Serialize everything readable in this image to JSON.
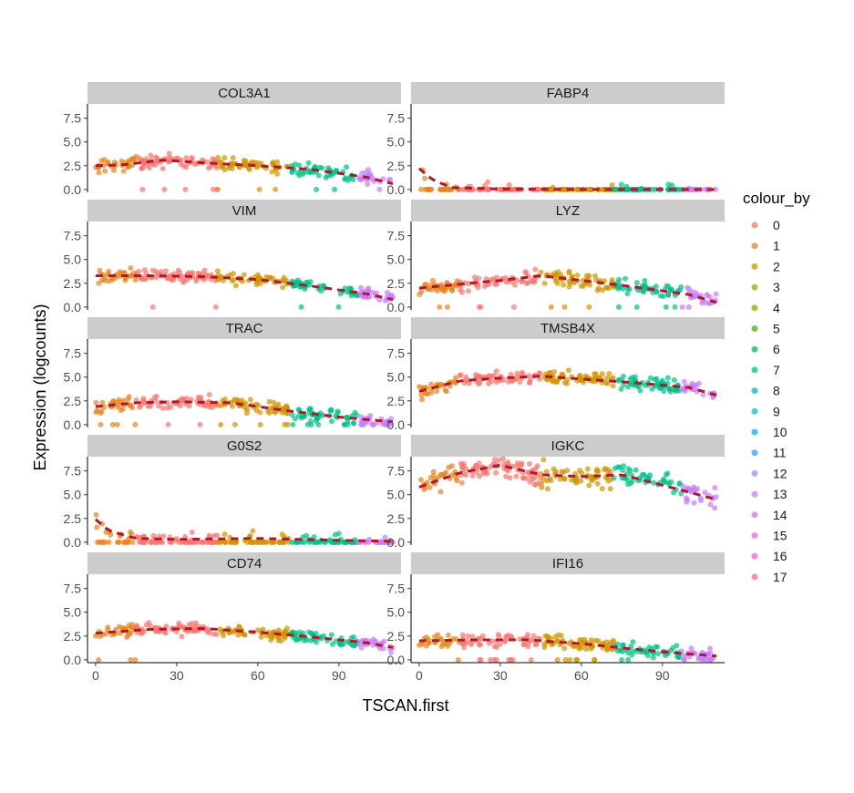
{
  "chart_data": {
    "type": "scatter",
    "facet_layout": "5 rows x 2 columns",
    "xlabel": "TSCAN.first",
    "ylabel": "Expression (logcounts)",
    "x_ticks": [
      0,
      30,
      60,
      90
    ],
    "y_ticks": [
      0.0,
      2.5,
      5.0,
      7.5
    ],
    "y_tick_labels": [
      "0.0",
      "2.5",
      "5.0",
      "7.5"
    ],
    "xlim": [
      -3,
      113
    ],
    "ylim": [
      -0.3,
      9.0
    ],
    "grid": false,
    "trend_line": {
      "style": "dashed",
      "color": "#b2182b"
    },
    "legend": {
      "title": "colour_by",
      "placement": "right",
      "entries": [
        "0",
        "1",
        "2",
        "3",
        "4",
        "5",
        "6",
        "7",
        "8",
        "9",
        "10",
        "11",
        "12",
        "13",
        "14",
        "15",
        "16",
        "17"
      ],
      "colors": [
        "#F8766D",
        "#E7851E",
        "#D09400",
        "#B2A100",
        "#89AC00",
        "#45B500",
        "#00BC51",
        "#00C087",
        "#00C0B2",
        "#00BCD6",
        "#00B3F2",
        "#29A3FF",
        "#9C8DFF",
        "#C77CFF",
        "#E46DF6",
        "#F663E1",
        "#FF62BF",
        "#FF6A98"
      ]
    },
    "cluster_segments": [
      {
        "cluster": "1",
        "x": [
          0,
          15
        ]
      },
      {
        "cluster": "0",
        "x": [
          15,
          45
        ]
      },
      {
        "cluster": "2",
        "x": [
          45,
          72
        ]
      },
      {
        "cluster": "7",
        "x": [
          72,
          97
        ]
      },
      {
        "cluster": "13",
        "x": [
          97,
          112
        ]
      }
    ],
    "panels": [
      {
        "gene": "COL3A1",
        "trend": {
          "x": [
            0,
            10,
            25,
            40,
            60,
            80,
            100,
            110
          ],
          "y": [
            2.5,
            2.6,
            3.1,
            2.8,
            2.5,
            2.1,
            1.3,
            0.6
          ]
        },
        "spread": 0.5,
        "zero_fraction": 0.05
      },
      {
        "gene": "FABP4",
        "trend": {
          "x": [
            0,
            5,
            12,
            30,
            60,
            90,
            110
          ],
          "y": [
            2.2,
            1.0,
            0.2,
            0.05,
            0.0,
            0.0,
            0.0
          ]
        },
        "spread": 0.4,
        "zero_fraction": 0.85
      },
      {
        "gene": "VIM",
        "trend": {
          "x": [
            0,
            20,
            40,
            60,
            80,
            100,
            110
          ],
          "y": [
            3.3,
            3.3,
            3.2,
            2.9,
            2.2,
            1.4,
            0.8
          ]
        },
        "spread": 0.45,
        "zero_fraction": 0.03
      },
      {
        "gene": "LYZ",
        "trend": {
          "x": [
            0,
            15,
            30,
            45,
            60,
            80,
            100,
            110
          ],
          "y": [
            2.0,
            2.4,
            2.8,
            3.3,
            2.8,
            2.1,
            1.3,
            0.5
          ]
        },
        "spread": 0.6,
        "zero_fraction": 0.05
      },
      {
        "gene": "TRAC",
        "trend": {
          "x": [
            0,
            15,
            30,
            50,
            70,
            90,
            110
          ],
          "y": [
            1.9,
            2.3,
            2.4,
            2.3,
            1.5,
            0.8,
            0.3
          ]
        },
        "spread": 0.55,
        "zero_fraction": 0.1
      },
      {
        "gene": "TMSB4X",
        "trend": {
          "x": [
            0,
            15,
            30,
            45,
            60,
            80,
            100,
            110
          ],
          "y": [
            3.5,
            4.6,
            4.9,
            5.1,
            4.8,
            4.4,
            3.9,
            3.1
          ]
        },
        "spread": 0.5,
        "zero_fraction": 0.0
      },
      {
        "gene": "G0S2",
        "trend": {
          "x": [
            0,
            5,
            15,
            30,
            60,
            90,
            110
          ],
          "y": [
            2.4,
            1.2,
            0.4,
            0.3,
            0.4,
            0.2,
            0.1
          ]
        },
        "spread": 0.5,
        "zero_fraction": 0.6
      },
      {
        "gene": "IGKC",
        "trend": {
          "x": [
            0,
            15,
            30,
            45,
            60,
            75,
            90,
            110
          ],
          "y": [
            5.8,
            7.3,
            8.1,
            7.1,
            6.9,
            7.1,
            6.0,
            4.5
          ]
        },
        "spread": 0.9,
        "zero_fraction": 0.0
      },
      {
        "gene": "CD74",
        "trend": {
          "x": [
            0,
            20,
            40,
            60,
            80,
            100,
            110
          ],
          "y": [
            2.8,
            3.2,
            3.3,
            2.9,
            2.4,
            1.8,
            1.3
          ]
        },
        "spread": 0.45,
        "zero_fraction": 0.02
      },
      {
        "gene": "IFI16",
        "trend": {
          "x": [
            0,
            20,
            40,
            60,
            80,
            100,
            110
          ],
          "y": [
            2.0,
            2.1,
            2.1,
            1.7,
            1.1,
            0.6,
            0.4
          ]
        },
        "spread": 0.5,
        "zero_fraction": 0.08
      }
    ]
  }
}
